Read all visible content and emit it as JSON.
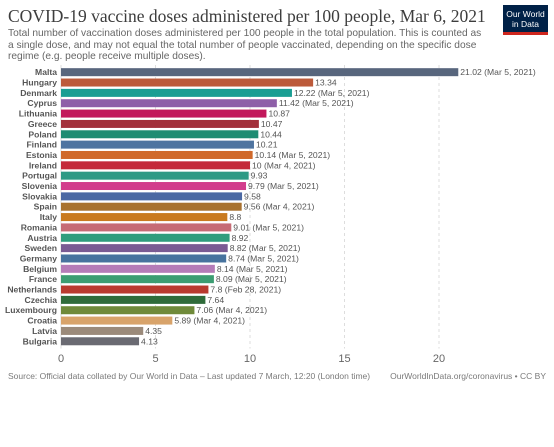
{
  "header": {
    "title": "COVID-19 vaccine doses administered per 100 people, Mar 6, 2021",
    "subtitle": "Total number of vaccination doses administered per 100 people in the total population. This is counted as a single dose, and may not equal the total number of people vaccinated, depending on the specific dose regime (e.g. people receive multiple doses).",
    "logo_line1": "Our World",
    "logo_line2": "in Data"
  },
  "footer": {
    "source": "Source: Official data collated by Our World in Data – Last updated 7 March, 12:20 (London time)",
    "credit": "OurWorldInData.org/coronavirus • CC BY"
  },
  "chart_data": {
    "type": "bar",
    "orientation": "horizontal",
    "xlim": [
      0,
      22
    ],
    "xticks": [
      0,
      5,
      10,
      15,
      20
    ],
    "grid": "vertical dashed",
    "categories": [
      "Malta",
      "Hungary",
      "Denmark",
      "Cyprus",
      "Lithuania",
      "Greece",
      "Poland",
      "Finland",
      "Estonia",
      "Ireland",
      "Portugal",
      "Slovenia",
      "Slovakia",
      "Spain",
      "Italy",
      "Romania",
      "Austria",
      "Sweden",
      "Germany",
      "Belgium",
      "France",
      "Netherlands",
      "Czechia",
      "Luxembourg",
      "Croatia",
      "Latvia",
      "Bulgaria"
    ],
    "values": [
      21.02,
      13.34,
      12.22,
      11.42,
      10.87,
      10.47,
      10.44,
      10.21,
      10.14,
      10,
      9.93,
      9.79,
      9.58,
      9.56,
      8.8,
      9.01,
      8.92,
      8.82,
      8.74,
      8.14,
      8.09,
      7.8,
      7.64,
      7.06,
      5.89,
      4.35,
      4.13
    ],
    "value_labels": [
      "21.02 (Mar 5, 2021)",
      "13.34",
      "12.22 (Mar 5, 2021)",
      "11.42 (Mar 5, 2021)",
      "10.87",
      "10.47",
      "10.44",
      "10.21",
      "10.14 (Mar 5, 2021)",
      "10 (Mar 4, 2021)",
      "9.93",
      "9.79 (Mar 5, 2021)",
      "9.58",
      "9.56 (Mar 4, 2021)",
      "8.8",
      "9.01 (Mar 5, 2021)",
      "8.92",
      "8.82 (Mar 5, 2021)",
      "8.74 (Mar 5, 2021)",
      "8.14 (Mar 5, 2021)",
      "8.09 (Mar 5, 2021)",
      "7.8 (Feb 28, 2021)",
      "7.64",
      "7.06 (Mar 4, 2021)",
      "5.89 (Mar 4, 2021)",
      "4.35",
      "4.13"
    ],
    "colors": [
      "#58667d",
      "#bc5a3a",
      "#1a9e93",
      "#8e5fa8",
      "#c2185b",
      "#a3303b",
      "#1e8c72",
      "#4f74a0",
      "#d0692b",
      "#c4293a",
      "#2e9a85",
      "#d23d8c",
      "#4b68a3",
      "#a8722f",
      "#c97a1f",
      "#c66b75",
      "#2f9d7d",
      "#7a5b93",
      "#47739e",
      "#b57cb8",
      "#3c9d72",
      "#b93a2f",
      "#2f6b3a",
      "#6f8a3a",
      "#d8a36a",
      "#9b8a7a",
      "#6a6a72"
    ]
  }
}
